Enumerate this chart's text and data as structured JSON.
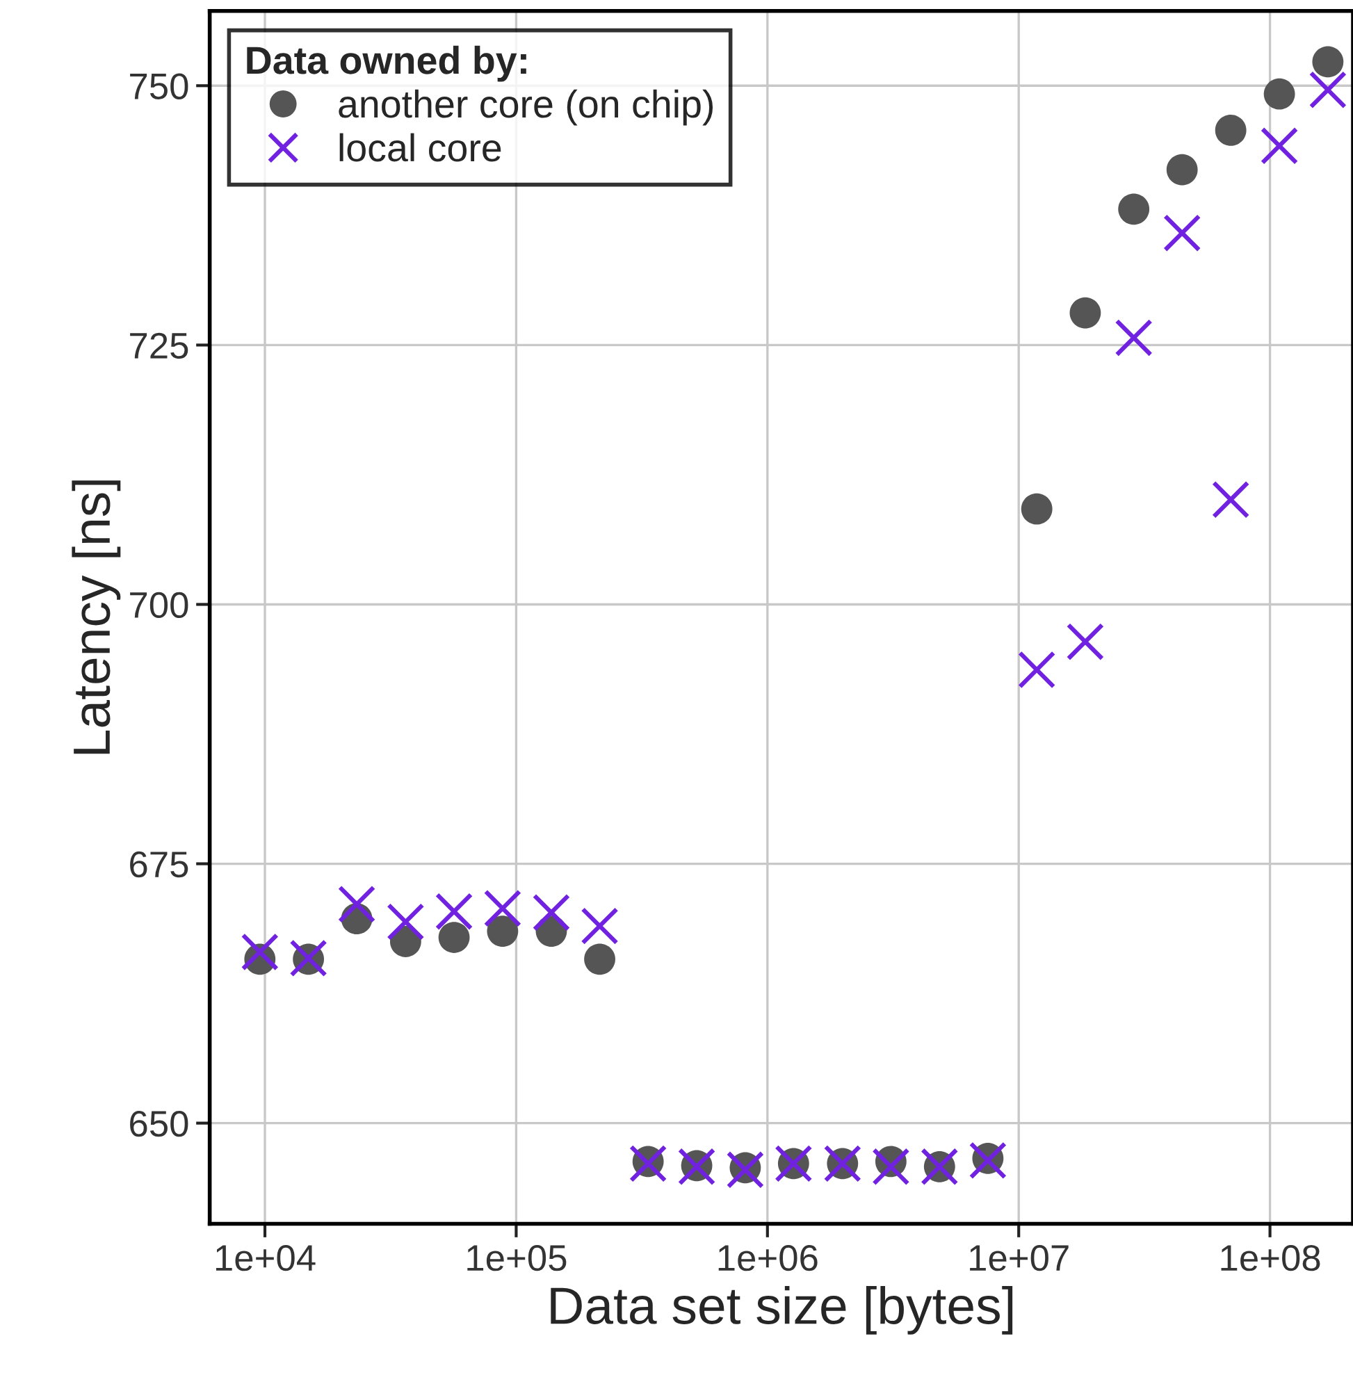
{
  "chart_data": {
    "type": "scatter",
    "xlabel": "Data set size [bytes]",
    "ylabel": "Latency [ns]",
    "legend_title": "Data owned by:",
    "legend": "top left",
    "grid": true,
    "log": "x",
    "x": [
      9550,
      14900,
      23200,
      36300,
      56600,
      88300,
      138000,
      215000,
      335000,
      523000,
      816000,
      1270000,
      1990000,
      3100000,
      4840000,
      7540000,
      11800000,
      18400000,
      28700000,
      44700000,
      69800000,
      109000000,
      170000000
    ],
    "xlim": [
      6030,
      214000000
    ],
    "xticks": [
      {
        "value": 10000,
        "label": "1e+04"
      },
      {
        "value": 100000,
        "label": "1e+05"
      },
      {
        "value": 1000000,
        "label": "1e+06"
      },
      {
        "value": 10000000,
        "label": "1e+07"
      },
      {
        "value": 100000000,
        "label": "1e+08"
      }
    ],
    "ylim": [
      640.3,
      757.2
    ],
    "yticks": [
      650,
      675,
      700,
      725,
      750
    ],
    "series": [
      {
        "name": "another core (on chip)",
        "color": "#555555",
        "marker": "circle",
        "values": [
          665.8,
          665.8,
          669.7,
          667.5,
          667.9,
          668.5,
          668.5,
          665.8,
          646.3,
          645.9,
          645.7,
          646.1,
          646.1,
          646.3,
          645.8,
          646.6,
          709.2,
          728.1,
          738.1,
          741.9,
          745.7,
          749.2,
          752.3
        ]
      },
      {
        "name": "local core",
        "color": "#7022e0",
        "marker": "cross",
        "values": [
          666.5,
          665.9,
          671.1,
          669.4,
          670.4,
          670.7,
          670.3,
          669.0,
          646.1,
          645.8,
          645.5,
          646.1,
          646.1,
          645.8,
          645.8,
          646.4,
          693.7,
          696.4,
          725.7,
          735.8,
          710.1,
          744.2,
          749.6
        ]
      }
    ]
  }
}
